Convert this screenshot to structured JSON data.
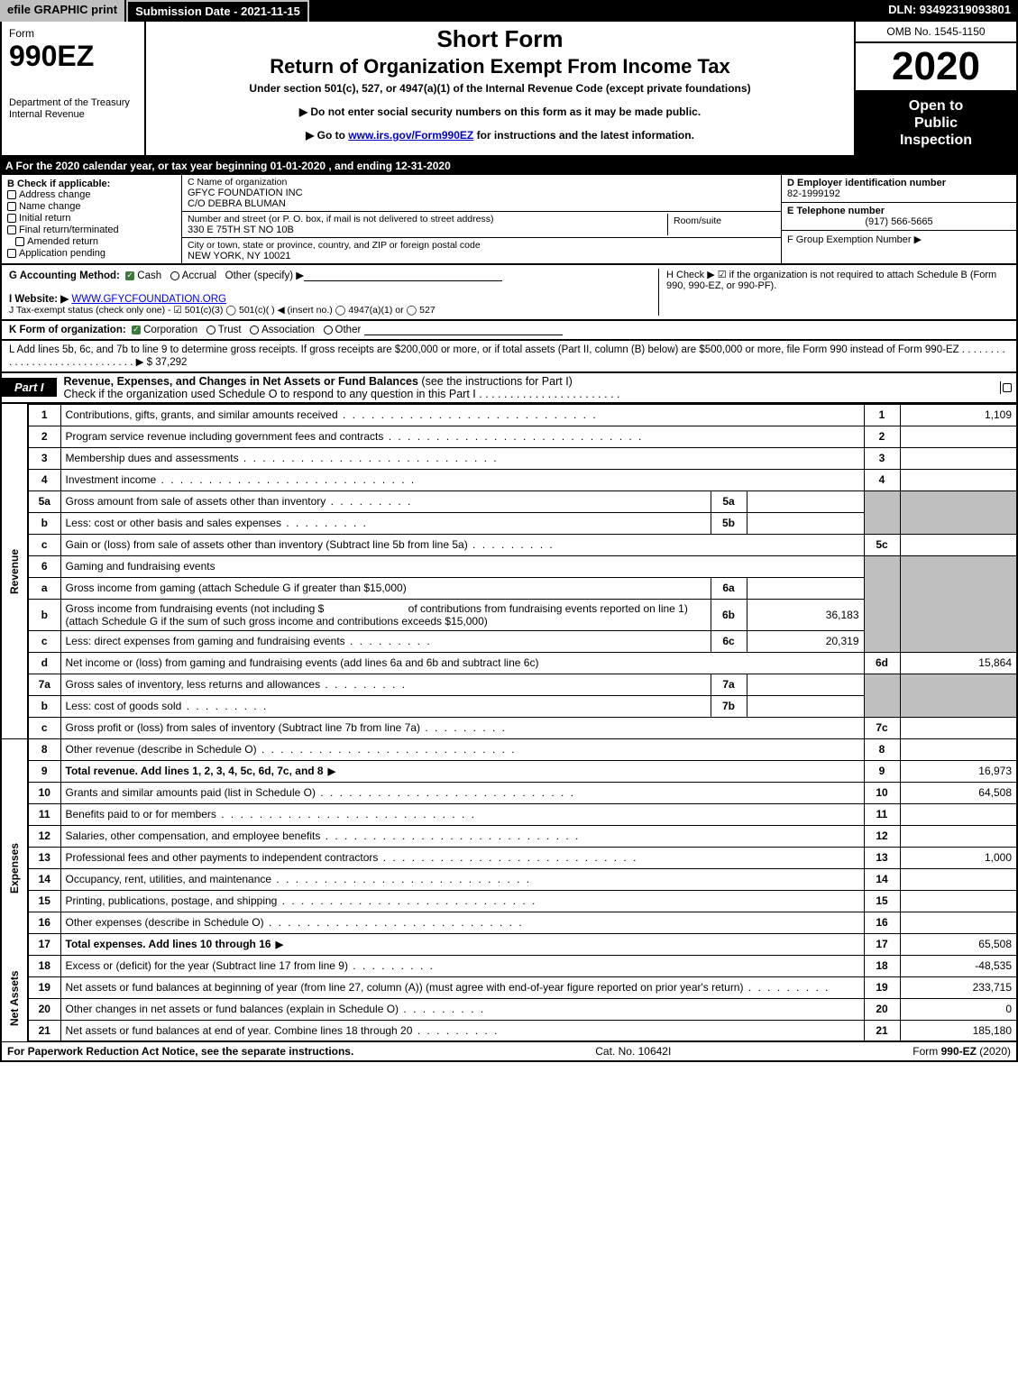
{
  "topbar": {
    "efile": "efile GRAPHIC print",
    "submission": "Submission Date - 2021-11-15",
    "dln": "DLN: 93492319093801"
  },
  "header": {
    "form_word": "Form",
    "form_number": "990EZ",
    "dept1": "Department of the Treasury",
    "dept2": "Internal Revenue",
    "short_form": "Short Form",
    "main_title": "Return of Organization Exempt From Income Tax",
    "subtitle": "Under section 501(c), 527, or 4947(a)(1) of the Internal Revenue Code (except private foundations)",
    "notice1": "▶ Do not enter social security numbers on this form as it may be made public.",
    "notice2_pre": "▶ Go to ",
    "notice2_link": "www.irs.gov/Form990EZ",
    "notice2_post": " for instructions and the latest information.",
    "omb": "OMB No. 1545-1150",
    "year": "2020",
    "open1": "Open to",
    "open2": "Public",
    "open3": "Inspection"
  },
  "lineA": "A For the 2020 calendar year, or tax year beginning 01-01-2020 , and ending 12-31-2020",
  "boxB": {
    "label": "B  Check if applicable:",
    "items": [
      "Address change",
      "Name change",
      "Initial return",
      "Final return/terminated",
      "Amended return",
      "Application pending"
    ]
  },
  "boxC": {
    "name_label": "C Name of organization",
    "name1": "GFYC FOUNDATION INC",
    "name2": "C/O DEBRA BLUMAN",
    "street_label": "Number and street (or P. O. box, if mail is not delivered to street address)",
    "street": "330 E 75TH ST NO 10B",
    "room_label": "Room/suite",
    "city_label": "City or town, state or province, country, and ZIP or foreign postal code",
    "city": "NEW YORK, NY   10021"
  },
  "boxDEF": {
    "d_label": "D Employer identification number",
    "d_val": "82-1999192",
    "e_label": "E Telephone number",
    "e_val": "(917) 566-5665",
    "f_label": "F Group Exemption Number   ▶"
  },
  "lineG": {
    "label": "G Accounting Method:",
    "cash": "Cash",
    "accrual": "Accrual",
    "other": "Other (specify) ▶"
  },
  "lineH": "H  Check ▶ ☑ if the organization is not required to attach Schedule B (Form 990, 990-EZ, or 990-PF).",
  "lineI": {
    "label": "I Website: ▶",
    "val": "WWW.GFYCFOUNDATION.ORG"
  },
  "lineJ": "J Tax-exempt status (check only one) -  ☑ 501(c)(3)  ◯ 501(c)(  ) ◀ (insert no.)  ◯ 4947(a)(1) or  ◯ 527",
  "lineK": {
    "label": "K Form of organization:",
    "corp": "Corporation",
    "trust": "Trust",
    "assoc": "Association",
    "other": "Other"
  },
  "lineL": {
    "text": "L Add lines 5b, 6c, and 7b to line 9 to determine gross receipts. If gross receipts are $200,000 or more, or if total assets (Part II, column (B) below) are $500,000 or more, file Form 990 instead of Form 990-EZ  .  .  .  .  .  .  .  .  .  .  .  .  .  .  .  .  .  .  .  .  .  .  .  .  .  .  .  .  .  . ▶ $",
    "amount": "37,292"
  },
  "part1": {
    "tab": "Part I",
    "title_bold": "Revenue, Expenses, and Changes in Net Assets or Fund Balances",
    "title_rest": " (see the instructions for Part I)",
    "sched_line": "Check if the organization used Schedule O to respond to any question in this Part I  .  .  .  .  .  .  .  .  .  .  .  .  .  .  .  .  .  .  .  .  .  .  ."
  },
  "side_labels": {
    "revenue": "Revenue",
    "expenses": "Expenses",
    "netassets": "Net Assets"
  },
  "rows": {
    "r1": {
      "n": "1",
      "desc": "Contributions, gifts, grants, and similar amounts received",
      "num": "1",
      "amt": "1,109"
    },
    "r2": {
      "n": "2",
      "desc": "Program service revenue including government fees and contracts",
      "num": "2",
      "amt": ""
    },
    "r3": {
      "n": "3",
      "desc": "Membership dues and assessments",
      "num": "3",
      "amt": ""
    },
    "r4": {
      "n": "4",
      "desc": "Investment income",
      "num": "4",
      "amt": ""
    },
    "r5a": {
      "n": "5a",
      "desc": "Gross amount from sale of assets other than inventory",
      "sub": "5a",
      "subval": ""
    },
    "r5b": {
      "n": "b",
      "desc": "Less: cost or other basis and sales expenses",
      "sub": "5b",
      "subval": ""
    },
    "r5c": {
      "n": "c",
      "desc": "Gain or (loss) from sale of assets other than inventory (Subtract line 5b from line 5a)",
      "num": "5c",
      "amt": ""
    },
    "r6": {
      "n": "6",
      "desc": "Gaming and fundraising events"
    },
    "r6a": {
      "n": "a",
      "desc": "Gross income from gaming (attach Schedule G if greater than $15,000)",
      "sub": "6a",
      "subval": ""
    },
    "r6b": {
      "n": "b",
      "desc1": "Gross income from fundraising events (not including $",
      "desc2": "of contributions from fundraising events reported on line 1) (attach Schedule G if the sum of such gross income and contributions exceeds $15,000)",
      "sub": "6b",
      "subval": "36,183"
    },
    "r6c": {
      "n": "c",
      "desc": "Less: direct expenses from gaming and fundraising events",
      "sub": "6c",
      "subval": "20,319"
    },
    "r6d": {
      "n": "d",
      "desc": "Net income or (loss) from gaming and fundraising events (add lines 6a and 6b and subtract line 6c)",
      "num": "6d",
      "amt": "15,864"
    },
    "r7a": {
      "n": "7a",
      "desc": "Gross sales of inventory, less returns and allowances",
      "sub": "7a",
      "subval": ""
    },
    "r7b": {
      "n": "b",
      "desc": "Less: cost of goods sold",
      "sub": "7b",
      "subval": ""
    },
    "r7c": {
      "n": "c",
      "desc": "Gross profit or (loss) from sales of inventory (Subtract line 7b from line 7a)",
      "num": "7c",
      "amt": ""
    },
    "r8": {
      "n": "8",
      "desc": "Other revenue (describe in Schedule O)",
      "num": "8",
      "amt": ""
    },
    "r9": {
      "n": "9",
      "desc": "Total revenue. Add lines 1, 2, 3, 4, 5c, 6d, 7c, and 8",
      "num": "9",
      "amt": "16,973"
    },
    "r10": {
      "n": "10",
      "desc": "Grants and similar amounts paid (list in Schedule O)",
      "num": "10",
      "amt": "64,508"
    },
    "r11": {
      "n": "11",
      "desc": "Benefits paid to or for members",
      "num": "11",
      "amt": ""
    },
    "r12": {
      "n": "12",
      "desc": "Salaries, other compensation, and employee benefits",
      "num": "12",
      "amt": ""
    },
    "r13": {
      "n": "13",
      "desc": "Professional fees and other payments to independent contractors",
      "num": "13",
      "amt": "1,000"
    },
    "r14": {
      "n": "14",
      "desc": "Occupancy, rent, utilities, and maintenance",
      "num": "14",
      "amt": ""
    },
    "r15": {
      "n": "15",
      "desc": "Printing, publications, postage, and shipping",
      "num": "15",
      "amt": ""
    },
    "r16": {
      "n": "16",
      "desc": "Other expenses (describe in Schedule O)",
      "num": "16",
      "amt": ""
    },
    "r17": {
      "n": "17",
      "desc": "Total expenses. Add lines 10 through 16",
      "num": "17",
      "amt": "65,508"
    },
    "r18": {
      "n": "18",
      "desc": "Excess or (deficit) for the year (Subtract line 17 from line 9)",
      "num": "18",
      "amt": "-48,535"
    },
    "r19": {
      "n": "19",
      "desc": "Net assets or fund balances at beginning of year (from line 27, column (A)) (must agree with end-of-year figure reported on prior year's return)",
      "num": "19",
      "amt": "233,715"
    },
    "r20": {
      "n": "20",
      "desc": "Other changes in net assets or fund balances (explain in Schedule O)",
      "num": "20",
      "amt": "0"
    },
    "r21": {
      "n": "21",
      "desc": "Net assets or fund balances at end of year. Combine lines 18 through 20",
      "num": "21",
      "amt": "185,180"
    }
  },
  "footer": {
    "left": "For Paperwork Reduction Act Notice, see the separate instructions.",
    "mid": "Cat. No. 10642I",
    "right_pre": "Form ",
    "right_bold": "990-EZ",
    "right_post": " (2020)"
  },
  "colors": {
    "black": "#000000",
    "grey": "#bfbfbf",
    "green_check": "#3a7a3a",
    "link": "#0000cc"
  }
}
